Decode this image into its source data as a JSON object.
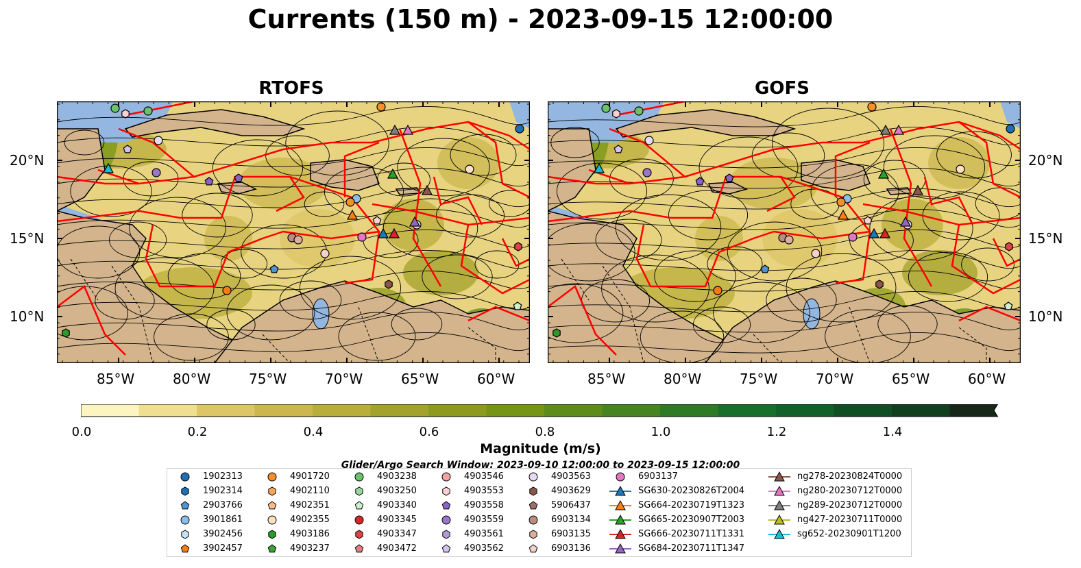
{
  "title": "Currents (150 m) - 2023-09-15 12:00:00",
  "panels": [
    {
      "title": "RTOFS"
    },
    {
      "title": "GOFS"
    }
  ],
  "axes": {
    "lat_labels": [
      "20°N",
      "15°N",
      "10°N"
    ],
    "lon_labels": [
      "85°W",
      "80°W",
      "75°W",
      "70°W",
      "65°W",
      "60°W"
    ]
  },
  "colorbar": {
    "label": "Magnitude (m/s)",
    "ticks": [
      "0.0",
      "0.2",
      "0.4",
      "0.6",
      "0.8",
      "1.0",
      "1.2",
      "1.4"
    ],
    "colors": [
      "#fdf5c0",
      "#efdf90",
      "#ddc665",
      "#cbb74d",
      "#b9ae3a",
      "#a3a22c",
      "#8d9a1c",
      "#769512",
      "#5e8c1a",
      "#458420",
      "#2e7a25",
      "#186f2c",
      "#11612a",
      "#104e24",
      "#12401f",
      "#14331b",
      "#17281a"
    ]
  },
  "map_colors": {
    "land": "#d3b48c",
    "ocean": "#93b7e0",
    "eez": "#ff0000",
    "coast": "#000000"
  },
  "legend": {
    "title": "Glider/Argo Search Window: 2023-09-10 12:00:00 to 2023-09-15 12:00:00",
    "items": [
      {
        "label": "1902313",
        "marker": "circle",
        "color": "#1f6fb4"
      },
      {
        "label": "1902314",
        "marker": "hexagon",
        "color": "#1f6fb4"
      },
      {
        "label": "2903766",
        "marker": "pentagon",
        "color": "#4f95d0"
      },
      {
        "label": "3901861",
        "marker": "circle",
        "color": "#8bbde6"
      },
      {
        "label": "3902456",
        "marker": "hexagon",
        "color": "#c8e0f5"
      },
      {
        "label": "3902457",
        "marker": "pentagon",
        "color": "#f57c0e"
      },
      {
        "label": "4901720",
        "marker": "circle",
        "color": "#f78f2a"
      },
      {
        "label": "4902110",
        "marker": "hexagon",
        "color": "#f7a558"
      },
      {
        "label": "4902351",
        "marker": "pentagon",
        "color": "#f8bc86"
      },
      {
        "label": "4902355",
        "marker": "circle",
        "color": "#fde0c2"
      },
      {
        "label": "4903186",
        "marker": "hexagon",
        "color": "#2b9a2b"
      },
      {
        "label": "4903237",
        "marker": "pentagon",
        "color": "#3aa43a"
      },
      {
        "label": "4903238",
        "marker": "circle",
        "color": "#6bc26b"
      },
      {
        "label": "4903250",
        "marker": "hexagon",
        "color": "#9ad79a"
      },
      {
        "label": "4903340",
        "marker": "pentagon",
        "color": "#cdeecd"
      },
      {
        "label": "4903345",
        "marker": "circle",
        "color": "#d62728"
      },
      {
        "label": "4903347",
        "marker": "hexagon",
        "color": "#dd4445"
      },
      {
        "label": "4903472",
        "marker": "pentagon",
        "color": "#e87d7d"
      },
      {
        "label": "4903546",
        "marker": "circle",
        "color": "#f2a3a3"
      },
      {
        "label": "4903553",
        "marker": "hexagon",
        "color": "#fbd0d0"
      },
      {
        "label": "4903558",
        "marker": "pentagon",
        "color": "#8c62c4"
      },
      {
        "label": "4903559",
        "marker": "circle",
        "color": "#9a76ca"
      },
      {
        "label": "4903561",
        "marker": "hexagon",
        "color": "#b39bd8"
      },
      {
        "label": "4903562",
        "marker": "pentagon",
        "color": "#d3c4ec"
      },
      {
        "label": "4903563",
        "marker": "circle",
        "color": "#e7daf4"
      },
      {
        "label": "4903629",
        "marker": "hexagon",
        "color": "#8c564b"
      },
      {
        "label": "5906437",
        "marker": "pentagon",
        "color": "#a06e62"
      },
      {
        "label": "6903134",
        "marker": "circle",
        "color": "#bd8b80"
      },
      {
        "label": "6903135",
        "marker": "hexagon",
        "color": "#dcae9f"
      },
      {
        "label": "6903136",
        "marker": "pentagon",
        "color": "#f4d2c8"
      },
      {
        "label": "6903137",
        "marker": "circle",
        "color": "#e377c2"
      },
      {
        "label": "SG630-20230826T2004",
        "marker": "triangle-line",
        "color": "#1f77b4"
      },
      {
        "label": "SG664-20230719T1323",
        "marker": "triangle-line",
        "color": "#ff7f0e"
      },
      {
        "label": "SG665-20230907T2003",
        "marker": "triangle-line",
        "color": "#2ca02c"
      },
      {
        "label": "SG666-20230711T1331",
        "marker": "triangle-line",
        "color": "#d62728"
      },
      {
        "label": "SG684-20230711T1347",
        "marker": "triangle-line",
        "color": "#9467bd"
      },
      {
        "label": "ng278-20230824T0000",
        "marker": "triangle-line",
        "color": "#8c564b"
      },
      {
        "label": "ng280-20230712T0000",
        "marker": "triangle-line",
        "color": "#e377c2"
      },
      {
        "label": "ng289-20230712T0000",
        "marker": "triangle-line",
        "color": "#7f7f7f"
      },
      {
        "label": "ng427-20230711T0000",
        "marker": "triangle-line",
        "color": "#bcbd22"
      },
      {
        "label": "sg652-20230901T1200",
        "marker": "triangle-line",
        "color": "#17becf"
      }
    ]
  }
}
